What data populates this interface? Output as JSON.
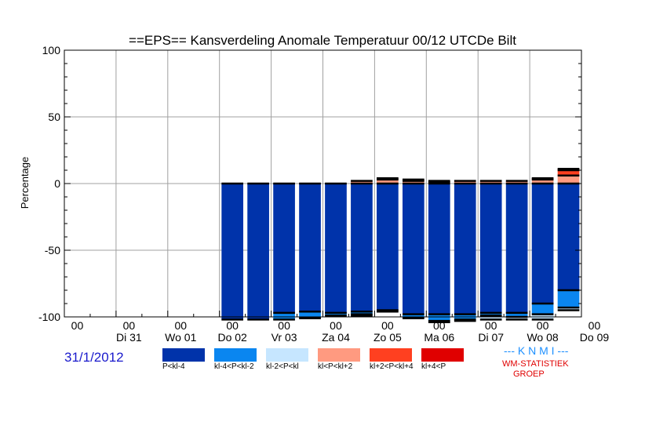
{
  "chart_data": {
    "type": "bar",
    "title": "==EPS== Kansverdeling Anomale Temperatuur 00/12 UTCDe Bilt",
    "ylabel": "Percentage",
    "ylim": [
      -100,
      100
    ],
    "yticks": [
      100,
      50,
      0,
      -50,
      -100
    ],
    "x_hour_labels": [
      "00",
      "00",
      "00",
      "00",
      "00",
      "00",
      "00",
      "00",
      "00",
      "00",
      "00"
    ],
    "x_day_labels": [
      "Di 31",
      "Wo 01",
      "Do 02",
      "Vr 03",
      "Za 04",
      "Zo 05",
      "Ma 06",
      "Di 07",
      "Wo 08",
      "Do 09"
    ],
    "grid": true,
    "steps": 20,
    "categories_note": "negative classes stacked below 0, positive classes stacked above 0",
    "legend_items": [
      {
        "label": "P<kl-4",
        "color": "#0033aa"
      },
      {
        "label": "kl-4<P<kl-2",
        "color": "#0a86f0"
      },
      {
        "label": "kl-2<P<kl",
        "color": "#c6e6ff"
      },
      {
        "label": "kl<P<kl+2",
        "color": "#ff9a80"
      },
      {
        "label": "kl+2<P<kl+4",
        "color": "#ff4020"
      },
      {
        "label": "kl+4<P",
        "color": "#e00000"
      }
    ],
    "series": [
      {
        "name": "P<kl-4",
        "sign": -1,
        "values": [
          null,
          null,
          null,
          null,
          null,
          null,
          102,
          102,
          97,
          96,
          97,
          96,
          95,
          98,
          98,
          98,
          97,
          97,
          90,
          80
        ]
      },
      {
        "name": "kl-4<P<kl-2",
        "sign": -1,
        "values": [
          null,
          null,
          null,
          null,
          null,
          null,
          0,
          0,
          5,
          5,
          2,
          2,
          0,
          3,
          5,
          4,
          2,
          3,
          8,
          13
        ]
      },
      {
        "name": "kl-2<P<kl",
        "sign": -1,
        "values": [
          null,
          null,
          null,
          null,
          null,
          null,
          0,
          0,
          0,
          0,
          0,
          1,
          1,
          0,
          1,
          1,
          3,
          2,
          4,
          2
        ]
      },
      {
        "name": "kl<P<kl+2",
        "sign": 1,
        "values": [
          null,
          null,
          null,
          null,
          null,
          null,
          0,
          0,
          0,
          0,
          0,
          2,
          3,
          2,
          1,
          2,
          2,
          2,
          3,
          6
        ]
      },
      {
        "name": "kl+2<P<kl+4",
        "sign": 1,
        "values": [
          null,
          null,
          null,
          null,
          null,
          null,
          0,
          0,
          0,
          0,
          0,
          0,
          1,
          1,
          1,
          0,
          0,
          0,
          1,
          4
        ]
      },
      {
        "name": "kl+4<P",
        "sign": 1,
        "values": [
          null,
          null,
          null,
          null,
          null,
          null,
          0,
          0,
          0,
          0,
          0,
          0,
          0,
          0,
          0,
          0,
          0,
          0,
          0,
          1
        ]
      }
    ]
  },
  "footer": {
    "date": "31/1/2012",
    "knmi": "--- K N M I ---",
    "wm_line1": "WM-STATISTIEK",
    "wm_line2": "GROEP"
  }
}
